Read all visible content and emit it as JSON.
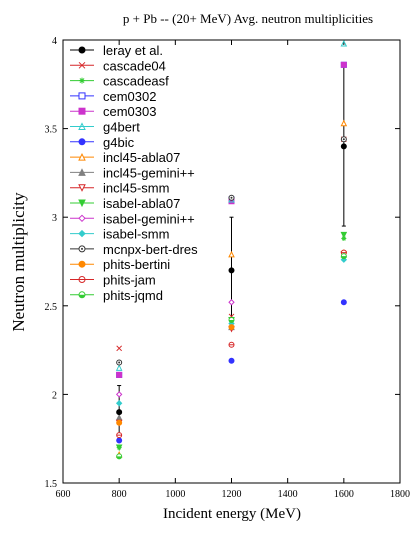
{
  "chart_data": {
    "type": "scatter",
    "title": "p + Pb -- (20+ MeV) Avg. neutron multiplicities",
    "xlabel": "Incident energy (MeV)",
    "ylabel": "Neutron multiplicity",
    "xlim": [
      600,
      1800
    ],
    "ylim": [
      1.5,
      4
    ],
    "xticks": [
      600,
      800,
      1000,
      1200,
      1400,
      1600,
      1800
    ],
    "yticks": [
      1.5,
      2,
      2.5,
      3,
      3.5,
      4
    ],
    "x": [
      800,
      1200,
      1600
    ],
    "grid": false,
    "legend_position": "top-left",
    "series": [
      {
        "name": "leray et al.",
        "color": "#000000",
        "marker": "filled-circle",
        "values": [
          1.9,
          2.7,
          3.4
        ],
        "error": [
          0.15,
          0.3,
          0.45
        ]
      },
      {
        "name": "cascade04",
        "color": "#d62728",
        "marker": "x",
        "values": [
          2.26,
          2.44,
          3.44
        ]
      },
      {
        "name": "cascadeasf",
        "color": "#33cc33",
        "marker": "asterisk",
        "values": [
          1.7,
          2.4,
          2.88
        ]
      },
      {
        "name": "cem0302",
        "color": "#3333ff",
        "marker": "open-square",
        "values": [
          2.11,
          3.1,
          3.86
        ]
      },
      {
        "name": "cem0303",
        "color": "#cc33cc",
        "marker": "filled-square",
        "values": [
          2.11,
          3.09,
          3.86
        ]
      },
      {
        "name": "g4bert",
        "color": "#33cccc",
        "marker": "triangle-up",
        "values": [
          2.15,
          3.1,
          3.98
        ]
      },
      {
        "name": "g4bic",
        "color": "#3333ff",
        "marker": "filled-circle",
        "values": [
          1.74,
          2.19,
          2.52
        ]
      },
      {
        "name": "incl45-abla07",
        "color": "#ff8800",
        "marker": "open-triangle-up",
        "values": [
          1.66,
          2.79,
          3.53
        ]
      },
      {
        "name": "incl45-gemini++",
        "color": "#808080",
        "marker": "filled-triangle-up",
        "values": [
          1.87,
          2.38,
          2.79
        ]
      },
      {
        "name": "incl45-smm",
        "color": "#d62728",
        "marker": "open-triangle-down",
        "values": [
          1.84,
          2.37,
          2.79
        ]
      },
      {
        "name": "isabel-abla07",
        "color": "#33cc33",
        "marker": "filled-triangle-down",
        "values": [
          1.7,
          2.42,
          2.9
        ]
      },
      {
        "name": "isabel-gemini++",
        "color": "#cc33cc",
        "marker": "open-diamond",
        "values": [
          2.0,
          2.52,
          2.8
        ]
      },
      {
        "name": "isabel-smm",
        "color": "#33cccc",
        "marker": "filled-diamond",
        "values": [
          1.95,
          2.4,
          2.76
        ]
      },
      {
        "name": "mcnpx-bert-dres",
        "color": "#333333",
        "marker": "open-circle-dot",
        "values": [
          2.18,
          3.11,
          3.44
        ]
      },
      {
        "name": "phits-bertini",
        "color": "#ff8800",
        "marker": "filled-circle",
        "values": [
          1.84,
          2.38,
          2.8
        ]
      },
      {
        "name": "phits-jam",
        "color": "#d62728",
        "marker": "open-circle-plus",
        "values": [
          1.77,
          2.28,
          2.8
        ]
      },
      {
        "name": "phits-jqmd",
        "color": "#33cc33",
        "marker": "open-circle-half",
        "values": [
          1.65,
          2.42,
          2.78
        ]
      }
    ]
  }
}
